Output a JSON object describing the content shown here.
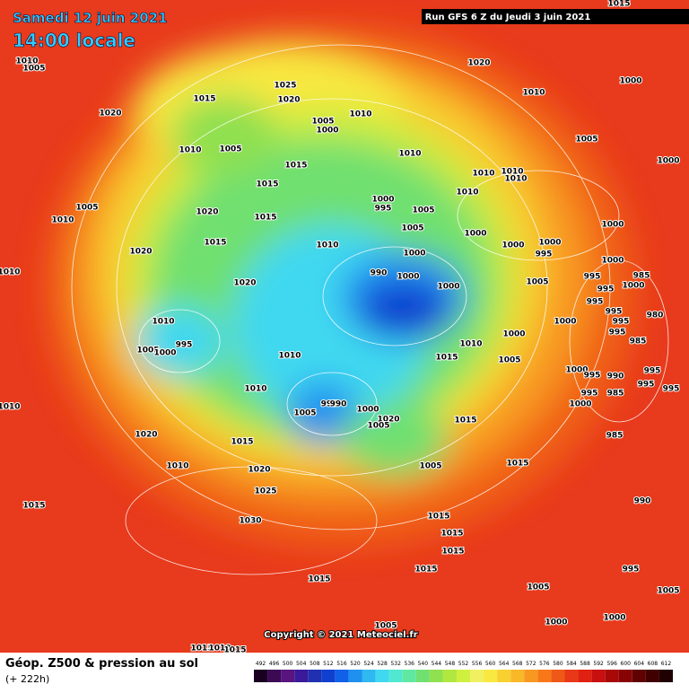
{
  "header": {
    "date": "Samedi 12 juin 2021",
    "time": "14:00 locale",
    "run": "Run GFS 6 Z du Jeudi 3 juin 2021"
  },
  "copyright": "Copyright © 2021 Meteociel.fr",
  "footer": {
    "title": "Géop. Z500 & pression au sol",
    "lead": "(+ 222h)"
  },
  "legend": {
    "levels": [
      492,
      496,
      500,
      504,
      508,
      512,
      516,
      520,
      524,
      528,
      532,
      536,
      540,
      544,
      548,
      552,
      556,
      560,
      564,
      568,
      572,
      576,
      580,
      584,
      588,
      592,
      596,
      600,
      604,
      608,
      612
    ],
    "colors": [
      "#1a0020",
      "#3c0a55",
      "#5a1480",
      "#3a1a9a",
      "#2030b0",
      "#1040d0",
      "#1060e8",
      "#2090f0",
      "#30b8f0",
      "#40d8f0",
      "#50e8d0",
      "#60e8a0",
      "#70e070",
      "#90e050",
      "#b0e840",
      "#d0f040",
      "#f0f060",
      "#f8e840",
      "#f8d030",
      "#f8b828",
      "#f89820",
      "#f87818",
      "#f05818",
      "#e83818",
      "#e02010",
      "#c81010",
      "#a80808",
      "#880404",
      "#600202",
      "#400000",
      "#200000"
    ]
  },
  "pressure_labels": [
    "1010",
    "1005",
    "1020",
    "1015",
    "1025",
    "1020",
    "1005",
    "1000",
    "1010",
    "1020",
    "1010",
    "1000",
    "1010",
    "1005",
    "1015",
    "1015",
    "1010",
    "1010",
    "1010",
    "1010",
    "1005",
    "1000",
    "1010",
    "1000",
    "995",
    "1005",
    "1005",
    "1020",
    "1015",
    "1005",
    "1000",
    "1000",
    "1000",
    "1000",
    "1010",
    "1015",
    "1010",
    "1000",
    "1020",
    "1010",
    "990",
    "995",
    "1000",
    "985",
    "1020",
    "1000",
    "1000",
    "1005",
    "995",
    "1000",
    "995",
    "995",
    "995",
    "980",
    "1010",
    "1000",
    "995",
    "995",
    "1000",
    "1010",
    "995",
    "1005",
    "1000",
    "1010",
    "1015",
    "1005",
    "985",
    "1000",
    "995",
    "990",
    "995",
    "995",
    "995",
    "1010",
    "995",
    "985",
    "995",
    "990",
    "1000",
    "1000",
    "1010",
    "1005",
    "1020",
    "1005",
    "1015",
    "1020",
    "985",
    "1015",
    "1010",
    "1005",
    "1015",
    "1020",
    "1025",
    "990",
    "1015",
    "1015",
    "1030",
    "1015",
    "1015",
    "1015",
    "995",
    "1015",
    "1005",
    "1005",
    "1000",
    "1000",
    "1005",
    "1015",
    "1010",
    "1015",
    "1015"
  ]
}
